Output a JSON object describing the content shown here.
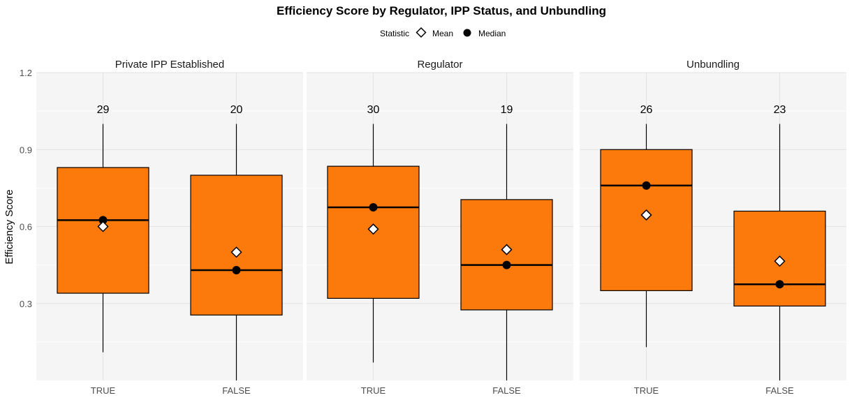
{
  "chart_data": {
    "type": "boxplot",
    "title": "Efficiency Score by Regulator, IPP Status, and Unbundling",
    "ylabel": "Efficiency Score",
    "xlabel": "",
    "ylim": [
      0.0,
      1.2
    ],
    "yticks": [
      0.3,
      0.6,
      0.9,
      1.2
    ],
    "ytick_labels": [
      "0.3",
      "0.6",
      "0.9",
      "1.2"
    ],
    "grid": true,
    "legend": {
      "title": "Statistic",
      "position": "top",
      "items": [
        {
          "label": "Mean",
          "shape": "diamond"
        },
        {
          "label": "Median",
          "shape": "circle"
        }
      ]
    },
    "box_color": "#fb7a0b",
    "panels": [
      {
        "title": "Private IPP Established",
        "groups": [
          {
            "label": "TRUE",
            "n": "29",
            "min": 0.11,
            "q1": 0.34,
            "median": 0.625,
            "q3": 0.83,
            "max": 1.0,
            "mean": 0.6
          },
          {
            "label": "FALSE",
            "n": "20",
            "min": 0.0,
            "q1": 0.255,
            "median": 0.43,
            "q3": 0.8,
            "max": 1.0,
            "mean": 0.5
          }
        ]
      },
      {
        "title": "Regulator",
        "groups": [
          {
            "label": "TRUE",
            "n": "30",
            "min": 0.07,
            "q1": 0.32,
            "median": 0.675,
            "q3": 0.835,
            "max": 1.0,
            "mean": 0.59
          },
          {
            "label": "FALSE",
            "n": "19",
            "min": 0.0,
            "q1": 0.275,
            "median": 0.45,
            "q3": 0.705,
            "max": 1.0,
            "mean": 0.51
          }
        ]
      },
      {
        "title": "Unbundling",
        "groups": [
          {
            "label": "TRUE",
            "n": "26",
            "min": 0.13,
            "q1": 0.35,
            "median": 0.76,
            "q3": 0.9,
            "max": 1.0,
            "mean": 0.645
          },
          {
            "label": "FALSE",
            "n": "23",
            "min": 0.0,
            "q1": 0.29,
            "median": 0.375,
            "q3": 0.66,
            "max": 1.0,
            "mean": 0.465
          }
        ]
      }
    ]
  }
}
